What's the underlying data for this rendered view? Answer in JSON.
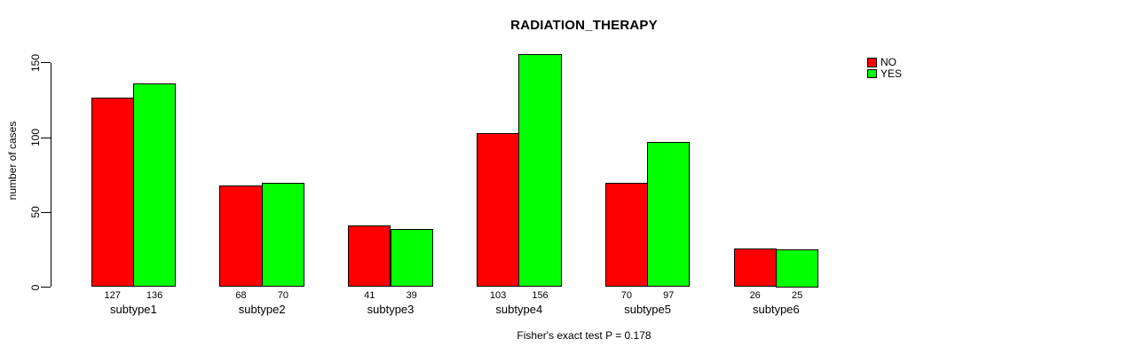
{
  "title": "RADIATION_THERAPY",
  "footer": "Fisher's exact test P = 0.178",
  "y_axis": {
    "label": "number of cases"
  },
  "legend": {
    "items": [
      {
        "label": "NO",
        "color": "#FF0000"
      },
      {
        "label": "YES",
        "color": "#00FF00"
      }
    ]
  },
  "chart_data": {
    "type": "bar",
    "title": "RADIATION_THERAPY",
    "categories": [
      "subtype1",
      "subtype2",
      "subtype3",
      "subtype4",
      "subtype5",
      "subtype6"
    ],
    "series": [
      {
        "name": "NO",
        "color": "#FF0000",
        "values": [
          127,
          68,
          41,
          103,
          70,
          26
        ]
      },
      {
        "name": "YES",
        "color": "#00FF00",
        "values": [
          136,
          70,
          39,
          156,
          97,
          25
        ]
      }
    ],
    "bar_value_labels": [
      [
        "127",
        "136"
      ],
      [
        "68",
        "70"
      ],
      [
        "41",
        "39"
      ],
      [
        "103",
        "156"
      ],
      [
        "70",
        "97"
      ],
      [
        "26",
        "25"
      ]
    ],
    "xlabel": "",
    "ylabel": "number of cases",
    "yticks": [
      0,
      50,
      100,
      150
    ],
    "ylim": [
      0,
      160
    ],
    "bar_border_color": "#000000",
    "grid": false,
    "legend_position": "top-right",
    "annotation": "Fisher's exact test P = 0.178"
  }
}
